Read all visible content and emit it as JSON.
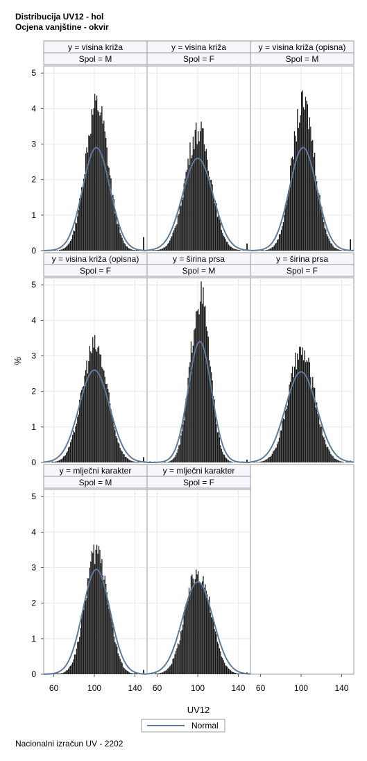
{
  "titles": {
    "line1": "Distribucija UV12 - hol",
    "line2": "Ocjena vanjštine - okvir"
  },
  "footnote": "Nacionalni izračun UV - 2202",
  "colors": {
    "bar": "#141414",
    "curve": "#5f7a9b",
    "header_bg": "#f6f6fd",
    "frame": "#9a9a9a",
    "grid": "#e8e8e8"
  },
  "chart_data": {
    "type": "histogram-panel",
    "xlabel": "UV12",
    "ylabel": "%",
    "xlim": [
      50,
      152
    ],
    "ylim": [
      0,
      5.2
    ],
    "xticks": [
      60,
      100,
      140
    ],
    "yticks": [
      0,
      1,
      2,
      3,
      4,
      5
    ],
    "legend": {
      "label": "Normal",
      "placement": "bottom"
    },
    "panels": [
      {
        "row": 0,
        "col": 0,
        "y": "y = visina križa",
        "spol": "Spol = M",
        "peak": 4.2,
        "normal_peak": 2.9,
        "normal_mean": 102,
        "sd": 13.5,
        "right_tail": 0.38
      },
      {
        "row": 0,
        "col": 1,
        "y": "y = visina križa",
        "spol": "Spol = F",
        "peak": 3.45,
        "normal_peak": 2.6,
        "normal_mean": 100,
        "sd": 15,
        "right_tail": 0.2
      },
      {
        "row": 0,
        "col": 2,
        "y": "y = visina križa (opisna)",
        "spol": "Spol = M",
        "peak": 4.2,
        "normal_peak": 2.9,
        "normal_mean": 102,
        "sd": 13.5,
        "right_tail": 0.32
      },
      {
        "row": 1,
        "col": 0,
        "y": "y = visina križa (opisna)",
        "spol": "Spol = F",
        "peak": 3.35,
        "normal_peak": 2.6,
        "normal_mean": 100,
        "sd": 15,
        "right_tail": 0.15
      },
      {
        "row": 1,
        "col": 1,
        "y": "y = širina prsa",
        "spol": "Spol = M",
        "peak": 4.8,
        "normal_peak": 3.4,
        "normal_mean": 102,
        "sd": 11.5,
        "right_tail": 0.08
      },
      {
        "row": 1,
        "col": 2,
        "y": "y = širina prsa",
        "spol": "Spol = F",
        "peak": 3.15,
        "normal_peak": 2.55,
        "normal_mean": 100,
        "sd": 15.5,
        "right_tail": 0.05
      },
      {
        "row": 2,
        "col": 0,
        "y": "y = mlječni karakter",
        "spol": "Spol = M",
        "peak": 3.55,
        "normal_peak": 2.95,
        "normal_mean": 102,
        "sd": 13.5,
        "right_tail": 0.12
      },
      {
        "row": 2,
        "col": 1,
        "y": "y = mlječni karakter",
        "spol": "Spol = F",
        "peak": 2.95,
        "normal_peak": 2.6,
        "normal_mean": 100,
        "sd": 15,
        "right_tail": 0.05
      }
    ]
  }
}
